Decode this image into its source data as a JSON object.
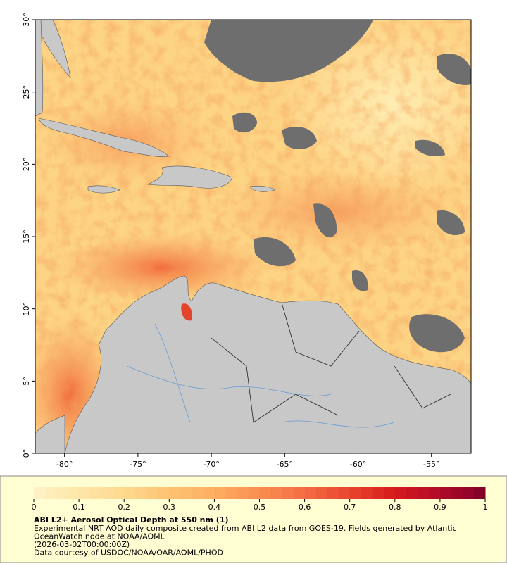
{
  "map": {
    "xlim": [
      -82,
      -52.3
    ],
    "ylim": [
      0,
      30
    ],
    "xticks": [
      {
        "value": -80,
        "label": "-80°"
      },
      {
        "value": -75,
        "label": "-75°"
      },
      {
        "value": -70,
        "label": "-70°"
      },
      {
        "value": -65,
        "label": "-65°"
      },
      {
        "value": -60,
        "label": "-60°"
      },
      {
        "value": -55,
        "label": "-55°"
      }
    ],
    "yticks": [
      {
        "value": 0,
        "label": "0°"
      },
      {
        "value": 5,
        "label": "5°"
      },
      {
        "value": 10,
        "label": "10°"
      },
      {
        "value": 15,
        "label": "15°"
      },
      {
        "value": 20,
        "label": "20°"
      },
      {
        "value": 25,
        "label": "25°"
      },
      {
        "value": 30,
        "label": "30°"
      }
    ]
  },
  "colorbar": {
    "lim": [
      0,
      1
    ],
    "ticks": [
      0,
      0.1,
      0.2,
      0.3,
      0.4,
      0.5,
      0.6,
      0.7,
      0.8,
      0.9,
      1
    ],
    "colors": [
      "#fff3c8",
      "#fee6a8",
      "#fed98e",
      "#fdc271",
      "#fdae61",
      "#f98e52",
      "#f46d43",
      "#e8452f",
      "#d7191c",
      "#b00b2a",
      "#800026"
    ]
  },
  "caption": {
    "title": "ABI L2+ Aerosol Optical Depth at 550 nm (1)",
    "lines": [
      "Experimental NRT AOD daily composite created from ABI L2 data from GOES-19. Fields generated by Atlantic",
      "OceanWatch node at NOAA/AOML",
      "(2026-03-02T00:00:00Z)",
      "Data courtesy of USDOC/NOAA/OAR/AOML/PHOD"
    ]
  }
}
